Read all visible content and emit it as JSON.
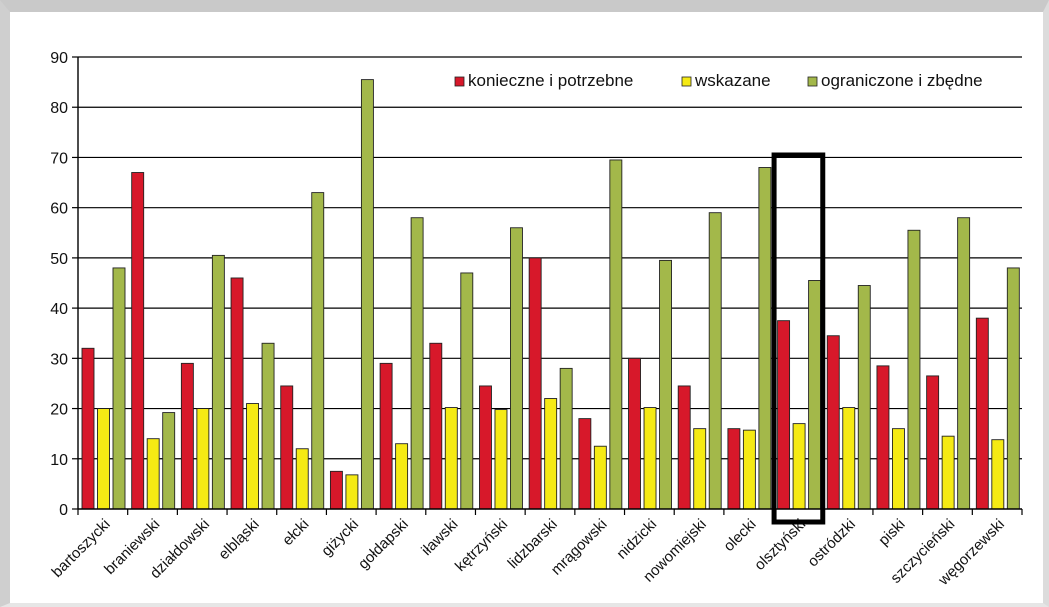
{
  "chart_data": {
    "type": "bar",
    "categories": [
      "bartoszycki",
      "braniewski",
      "działdowski",
      "elbląski",
      "ełcki",
      "giżycki",
      "gołdapski",
      "iławski",
      "kętrzyński",
      "lidzbarski",
      "mrągowski",
      "nidzicki",
      "nowomiejski",
      "olecki",
      "olsztyński",
      "ostródzki",
      "piski",
      "szczycieński",
      "węgorzewski"
    ],
    "series": [
      {
        "name": "konieczne i potrzebne",
        "color": "#d7182a",
        "values": [
          32,
          67,
          29,
          46,
          24.5,
          7.5,
          29,
          33,
          24.5,
          50,
          18,
          30,
          24.5,
          16,
          37.5,
          34.5,
          28.5,
          26.5,
          38
        ]
      },
      {
        "name": "wskazane",
        "color": "#f5ea14",
        "values": [
          20,
          14,
          20,
          21,
          12,
          6.8,
          13,
          20.2,
          19.8,
          22,
          12.5,
          20.2,
          16,
          15.7,
          17,
          20.2,
          16,
          14.5,
          13.8
        ]
      },
      {
        "name": "ograniczone i zbędne",
        "color": "#a3b84a",
        "values": [
          48,
          19.2,
          50.5,
          33,
          63,
          85.5,
          58,
          47,
          56,
          28,
          69.5,
          49.5,
          59,
          68,
          45.5,
          44.5,
          55.5,
          58,
          48
        ]
      }
    ],
    "ylim": [
      0,
      90
    ],
    "yticks": [
      "0",
      "10",
      "20",
      "30",
      "40",
      "50",
      "60",
      "70",
      "80",
      "90"
    ],
    "grid": true,
    "legend_position": "top-right",
    "highlight_category": "olsztyński"
  }
}
